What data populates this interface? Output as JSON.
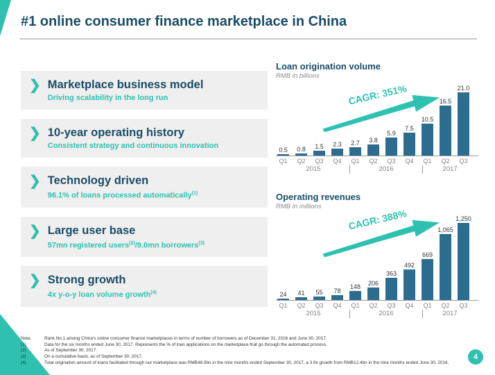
{
  "slide": {
    "title": "#1 online consumer finance marketplace in China",
    "page_number": "4"
  },
  "colors": {
    "navy": "#1A4C66",
    "accent_teal": "#2EC1AF",
    "bar_blue": "#2C6C8F",
    "bullet_box_bg": "#EFEFEF",
    "axis_gray": "#999999"
  },
  "bullets": [
    {
      "title": "Marketplace business model",
      "subtitle": [
        {
          "t": "Driving scalability in the long run"
        }
      ]
    },
    {
      "title": "10-year operating history",
      "subtitle": [
        {
          "t": "Consistent strategy and continuous innovation"
        }
      ]
    },
    {
      "title": "Technology driven",
      "subtitle": [
        {
          "t": "96.1% of loans processed automatically"
        },
        {
          "s": "(1)"
        }
      ]
    },
    {
      "title": "Large user base",
      "subtitle": [
        {
          "t": "57mn registered users"
        },
        {
          "s": "(2)"
        },
        {
          "t": "/9.0mn borrowers"
        },
        {
          "s": "(3)"
        }
      ]
    },
    {
      "title": "Strong growth",
      "subtitle": [
        {
          "t": "4x y-o-y loan volume growth"
        },
        {
          "s": "(4)"
        }
      ]
    }
  ],
  "chart_data": [
    {
      "type": "bar",
      "title": "Loan origination volume",
      "subtitle": "RMB in billions",
      "categories": [
        "Q1",
        "Q2",
        "Q3",
        "Q4",
        "Q1",
        "Q2",
        "Q3",
        "Q4",
        "Q1",
        "Q2",
        "Q3"
      ],
      "year_groups": [
        {
          "label": "2015",
          "span": 4
        },
        {
          "label": "2016",
          "span": 4
        },
        {
          "label": "2017",
          "span": 3
        }
      ],
      "values": [
        0.5,
        0.8,
        1.5,
        2.3,
        2.7,
        3.8,
        5.9,
        7.5,
        10.5,
        16.5,
        21.0
      ],
      "value_labels": [
        "0.5",
        "0.8",
        "1.5",
        "2.3",
        "2.7",
        "3.8",
        "5.9",
        "7.5",
        "10.5",
        "16.5",
        "21.0"
      ],
      "ymax": 21.0,
      "cagr": "CAGR: 351%",
      "legend_position": "none",
      "grid": false
    },
    {
      "type": "bar",
      "title": "Operating revenues",
      "subtitle": "RMB in millions",
      "categories": [
        "Q1",
        "Q2",
        "Q3",
        "Q4",
        "Q1",
        "Q2",
        "Q3",
        "Q4",
        "Q1",
        "Q2",
        "Q3"
      ],
      "year_groups": [
        {
          "label": "2015",
          "span": 4
        },
        {
          "label": "2016",
          "span": 4
        },
        {
          "label": "2017",
          "span": 3
        }
      ],
      "values": [
        24,
        41,
        55,
        78,
        148,
        206,
        363,
        492,
        669,
        1065,
        1250
      ],
      "value_labels": [
        "24",
        "41",
        "55",
        "78",
        "148",
        "206",
        "363",
        "492",
        "669",
        "1,065",
        "1,250"
      ],
      "ymax": 1250,
      "cagr": "CAGR: 388%",
      "legend_position": "none",
      "grid": false
    }
  ],
  "footnotes": [
    {
      "label": "Note:",
      "text": "Rank No.1 among China's online consumer finance marketplaces in terms of number of borrowers as of December 31, 2016 and June 30, 2017."
    },
    {
      "label": "(1)",
      "text": "Data for the six months ended June 30, 2017. Represents the % of loan applications on the marketplace that go through the automated process."
    },
    {
      "label": "(2)",
      "text": "As of September 30, 2017."
    },
    {
      "label": "(3)",
      "text": "On a cumulative basis, as of September 30, 2017."
    },
    {
      "label": "(4)",
      "text": "Total origination amount of loans facilitated through our marketplace was RMB48.0bn in the nine months ended September 30, 2017, a 3.9x growth from RMB12.4bn in the nine months ended June 30, 2016."
    }
  ]
}
